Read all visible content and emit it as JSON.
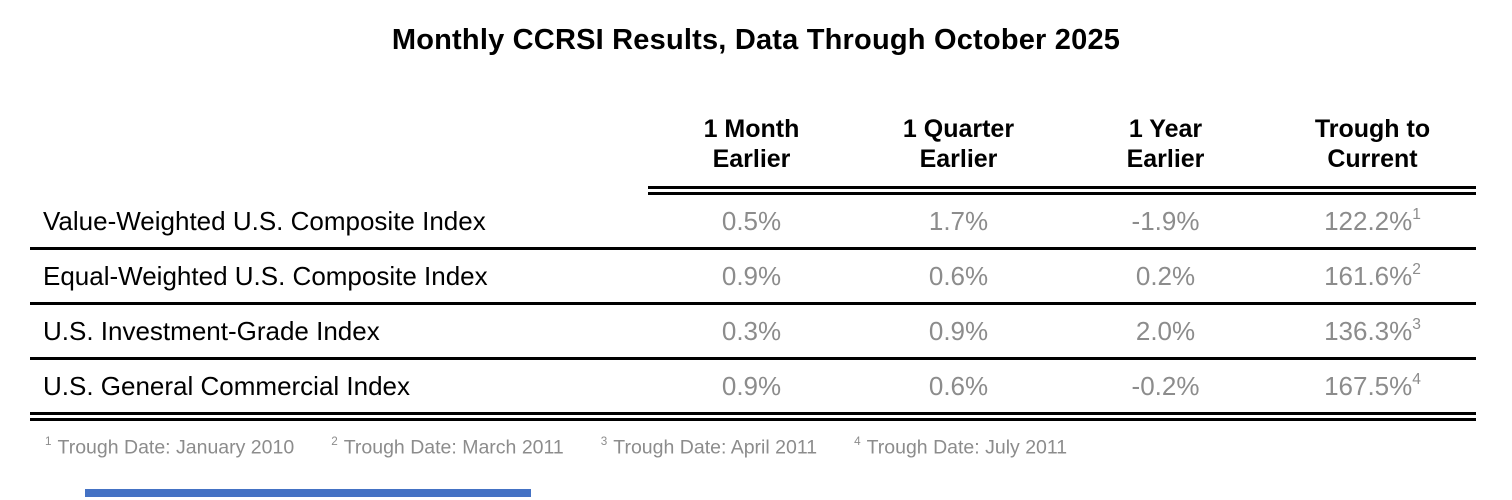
{
  "title": "Monthly CCRSI Results, Data Through October 2025",
  "colors": {
    "title_text": "#000000",
    "header_text": "#000000",
    "label_text": "#000000",
    "value_text": "#8c8c8c",
    "footnote_text": "#8c8c8c",
    "rule": "#000000",
    "accent_bar": "#4472c4",
    "background": "#ffffff"
  },
  "table": {
    "columns": [
      {
        "line1": "1 Month",
        "line2": "Earlier"
      },
      {
        "line1": "1 Quarter",
        "line2": "Earlier"
      },
      {
        "line1": "1 Year",
        "line2": "Earlier"
      },
      {
        "line1": "Trough to",
        "line2": "Current"
      }
    ],
    "rows": [
      {
        "label": "Value-Weighted U.S. Composite Index",
        "values": [
          "0.5%",
          "1.7%",
          "-1.9%",
          "122.2%"
        ],
        "footnote_ref": "1"
      },
      {
        "label": "Equal-Weighted U.S. Composite Index",
        "values": [
          "0.9%",
          "0.6%",
          "0.2%",
          "161.6%"
        ],
        "footnote_ref": "2"
      },
      {
        "label": "U.S. Investment-Grade Index",
        "values": [
          "0.3%",
          "0.9%",
          "2.0%",
          "136.3%"
        ],
        "footnote_ref": "3"
      },
      {
        "label": "U.S. General Commercial Index",
        "values": [
          "0.9%",
          "0.6%",
          "-0.2%",
          "167.5%"
        ],
        "footnote_ref": "4"
      }
    ]
  },
  "footnotes": [
    {
      "ref": "1",
      "text": "Trough Date: January 2010"
    },
    {
      "ref": "2",
      "text": "Trough Date: March 2011"
    },
    {
      "ref": "3",
      "text": "Trough Date: April 2011"
    },
    {
      "ref": "4",
      "text": "Trough Date: July 2011"
    }
  ],
  "chart_data": {
    "type": "table",
    "title": "Monthly CCRSI Results, Data Through October 2025",
    "columns": [
      "1 Month Earlier",
      "1 Quarter Earlier",
      "1 Year Earlier",
      "Trough to Current"
    ],
    "rows": [
      {
        "index": "Value-Weighted U.S. Composite Index",
        "one_month_earlier_pct": 0.5,
        "one_quarter_earlier_pct": 1.7,
        "one_year_earlier_pct": -1.9,
        "trough_to_current_pct": 122.2,
        "trough_date": "January 2010"
      },
      {
        "index": "Equal-Weighted U.S. Composite Index",
        "one_month_earlier_pct": 0.9,
        "one_quarter_earlier_pct": 0.6,
        "one_year_earlier_pct": 0.2,
        "trough_to_current_pct": 161.6,
        "trough_date": "March 2011"
      },
      {
        "index": "U.S. Investment-Grade Index",
        "one_month_earlier_pct": 0.3,
        "one_quarter_earlier_pct": 0.9,
        "one_year_earlier_pct": 2.0,
        "trough_to_current_pct": 136.3,
        "trough_date": "April 2011"
      },
      {
        "index": "U.S. General Commercial Index",
        "one_month_earlier_pct": 0.9,
        "one_quarter_earlier_pct": 0.6,
        "one_year_earlier_pct": -0.2,
        "trough_to_current_pct": 167.5,
        "trough_date": "July 2011"
      }
    ],
    "units": "percent",
    "grid": "horizontal rules between rows, double rule under header and at table bottom",
    "legend": "none"
  }
}
